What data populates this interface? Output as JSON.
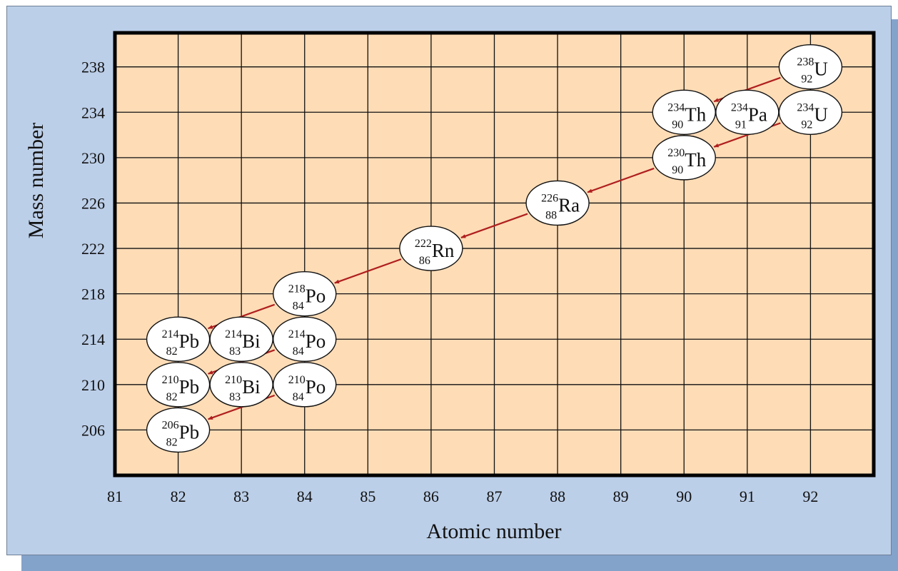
{
  "chart_data": {
    "type": "scatter",
    "xlabel": "Atomic number",
    "ylabel": "Mass number",
    "xlim": [
      81,
      93
    ],
    "ylim": [
      202,
      241
    ],
    "x_ticks": [
      81,
      82,
      83,
      84,
      85,
      86,
      87,
      88,
      89,
      90,
      91,
      92
    ],
    "y_ticks": [
      206,
      210,
      214,
      218,
      222,
      226,
      230,
      234,
      238
    ],
    "grid": true,
    "nuclides": [
      {
        "symbol": "U",
        "z": 92,
        "a": 238,
        "mass_label": "238",
        "atomic_label": "92"
      },
      {
        "symbol": "Th",
        "z": 90,
        "a": 234,
        "mass_label": "234",
        "atomic_label": "90"
      },
      {
        "symbol": "Pa",
        "z": 91,
        "a": 234,
        "mass_label": "234",
        "atomic_label": "91"
      },
      {
        "symbol": "U",
        "z": 92,
        "a": 234,
        "mass_label": "234",
        "atomic_label": "92"
      },
      {
        "symbol": "Th",
        "z": 90,
        "a": 230,
        "mass_label": "230",
        "atomic_label": "90"
      },
      {
        "symbol": "Ra",
        "z": 88,
        "a": 226,
        "mass_label": "226",
        "atomic_label": "88"
      },
      {
        "symbol": "Rn",
        "z": 86,
        "a": 222,
        "mass_label": "222",
        "atomic_label": "86"
      },
      {
        "symbol": "Po",
        "z": 84,
        "a": 218,
        "mass_label": "218",
        "atomic_label": "84"
      },
      {
        "symbol": "Pb",
        "z": 82,
        "a": 214,
        "mass_label": "214",
        "atomic_label": "82"
      },
      {
        "symbol": "Bi",
        "z": 83,
        "a": 214,
        "mass_label": "214",
        "atomic_label": "83"
      },
      {
        "symbol": "Po",
        "z": 84,
        "a": 214,
        "mass_label": "214",
        "atomic_label": "84"
      },
      {
        "symbol": "Pb",
        "z": 82,
        "a": 210,
        "mass_label": "210",
        "atomic_label": "82"
      },
      {
        "symbol": "Bi",
        "z": 83,
        "a": 210,
        "mass_label": "210",
        "atomic_label": "83"
      },
      {
        "symbol": "Po",
        "z": 84,
        "a": 210,
        "mass_label": "210",
        "atomic_label": "84"
      },
      {
        "symbol": "Pb",
        "z": 82,
        "a": 206,
        "mass_label": "206",
        "atomic_label": "82"
      }
    ],
    "decays": [
      {
        "from": [
          92,
          238
        ],
        "to": [
          90,
          234
        ]
      },
      {
        "from": [
          90,
          234
        ],
        "to": [
          91,
          234
        ]
      },
      {
        "from": [
          91,
          234
        ],
        "to": [
          92,
          234
        ]
      },
      {
        "from": [
          92,
          234
        ],
        "to": [
          90,
          230
        ]
      },
      {
        "from": [
          90,
          230
        ],
        "to": [
          88,
          226
        ]
      },
      {
        "from": [
          88,
          226
        ],
        "to": [
          86,
          222
        ]
      },
      {
        "from": [
          86,
          222
        ],
        "to": [
          84,
          218
        ]
      },
      {
        "from": [
          84,
          218
        ],
        "to": [
          82,
          214
        ]
      },
      {
        "from": [
          82,
          214
        ],
        "to": [
          83,
          214
        ]
      },
      {
        "from": [
          83,
          214
        ],
        "to": [
          84,
          214
        ]
      },
      {
        "from": [
          84,
          214
        ],
        "to": [
          82,
          210
        ]
      },
      {
        "from": [
          82,
          210
        ],
        "to": [
          83,
          210
        ]
      },
      {
        "from": [
          83,
          210
        ],
        "to": [
          84,
          210
        ]
      },
      {
        "from": [
          84,
          210
        ],
        "to": [
          82,
          206
        ]
      }
    ]
  },
  "colors": {
    "plot_background": "#fddcb6",
    "panel_background": "#bccfe9",
    "panel_shadow": "#84a3cb",
    "arrow": "#b01e1e",
    "grid": "#111111",
    "node_fill": "#ffffff"
  }
}
